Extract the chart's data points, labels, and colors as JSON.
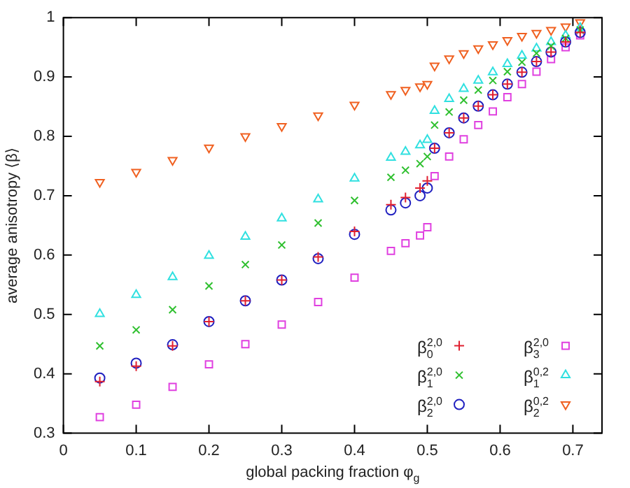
{
  "chart_data": {
    "type": "scatter",
    "xlabel": "global packing fraction φ$_{g}$",
    "ylabel": "average anisotropy ⟨β⟩",
    "x": [
      0.05,
      0.1,
      0.15,
      0.2,
      0.25,
      0.3,
      0.35,
      0.4,
      0.45,
      0.47,
      0.49,
      0.5,
      0.51,
      0.53,
      0.55,
      0.57,
      0.59,
      0.61,
      0.63,
      0.65,
      0.67,
      0.69,
      0.71
    ],
    "xlim": [
      0,
      0.74
    ],
    "xticks": [
      0,
      0.1,
      0.2,
      0.3,
      0.4,
      0.5,
      0.6,
      0.7
    ],
    "ylim": [
      0.3,
      1
    ],
    "yticks": [
      0.3,
      0.4,
      0.5,
      0.6,
      0.7,
      0.8,
      0.9,
      1
    ],
    "grid": false,
    "legend": "bottom right",
    "series": [
      {
        "name": "β$_{0}$$^{2,0}$",
        "color": "#e02030",
        "marker": "plus",
        "values": [
          0.387,
          0.413,
          0.447,
          0.488,
          0.523,
          0.558,
          0.597,
          0.64,
          0.685,
          0.697,
          0.713,
          0.725,
          0.78,
          0.806,
          0.831,
          0.851,
          0.87,
          0.888,
          0.908,
          0.926,
          0.942,
          0.959,
          0.975
        ]
      },
      {
        "name": "β$_{1}$$^{2,0}$",
        "color": "#30c030",
        "marker": "cross",
        "values": [
          0.447,
          0.474,
          0.508,
          0.548,
          0.584,
          0.617,
          0.654,
          0.692,
          0.731,
          0.743,
          0.754,
          0.766,
          0.819,
          0.841,
          0.861,
          0.878,
          0.894,
          0.909,
          0.925,
          0.94,
          0.952,
          0.965,
          0.979
        ]
      },
      {
        "name": "β$_{2}$$^{2,0}$",
        "color": "#2020c0",
        "marker": "circle",
        "values": [
          0.393,
          0.418,
          0.449,
          0.488,
          0.523,
          0.558,
          0.594,
          0.635,
          0.676,
          0.688,
          0.7,
          0.713,
          0.78,
          0.806,
          0.831,
          0.851,
          0.87,
          0.888,
          0.908,
          0.926,
          0.942,
          0.959,
          0.975
        ]
      },
      {
        "name": "β$_{3}$$^{2,0}$",
        "color": "#e040e0",
        "marker": "square",
        "values": [
          0.327,
          0.348,
          0.378,
          0.416,
          0.45,
          0.483,
          0.521,
          0.562,
          0.607,
          0.62,
          0.633,
          0.647,
          0.733,
          0.766,
          0.795,
          0.819,
          0.842,
          0.866,
          0.888,
          0.909,
          0.93,
          0.95,
          0.97
        ]
      },
      {
        "name": "β$_{1}$$^{0,2}$",
        "color": "#30e0e0",
        "marker": "triangle",
        "values": [
          0.501,
          0.533,
          0.563,
          0.599,
          0.631,
          0.662,
          0.694,
          0.729,
          0.764,
          0.774,
          0.785,
          0.794,
          0.843,
          0.863,
          0.88,
          0.894,
          0.908,
          0.922,
          0.936,
          0.948,
          0.959,
          0.97,
          0.983
        ]
      },
      {
        "name": "β$_{2}$$^{0,2}$",
        "color": "#f06020",
        "marker": "triangle-down",
        "values": [
          0.723,
          0.74,
          0.76,
          0.781,
          0.8,
          0.817,
          0.835,
          0.853,
          0.871,
          0.878,
          0.884,
          0.888,
          0.919,
          0.931,
          0.94,
          0.948,
          0.955,
          0.962,
          0.969,
          0.974,
          0.979,
          0.985,
          0.992
        ]
      }
    ]
  }
}
